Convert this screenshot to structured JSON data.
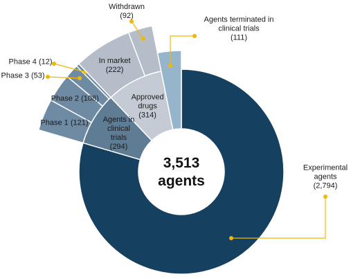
{
  "chart_data": {
    "type": "sunburst",
    "total": 3513,
    "total_label": "3,513",
    "total_caption": "agents",
    "nodes": [
      {
        "name": "Experimental agents",
        "value": 2794,
        "value_label": "(2,794)",
        "color": "#15405f"
      },
      {
        "name": "Agents in clinical trials",
        "value": 294,
        "value_label": "(294)",
        "color": "#5f7c95",
        "children": [
          {
            "name": "Phase 1",
            "value": 121,
            "value_label": "(121)",
            "color": "#6f8ba4"
          },
          {
            "name": "Phase 2",
            "value": 108,
            "value_label": "(108)",
            "color": "#6f8ba4"
          },
          {
            "name": "Phase 3",
            "value": 53,
            "value_label": "(53)",
            "color": "#6f8ba4"
          },
          {
            "name": "Phase 4",
            "value": 12,
            "value_label": "(12)",
            "color": "#6f8ba4"
          }
        ]
      },
      {
        "name": "Approved drugs",
        "value": 314,
        "value_label": "(314)",
        "color": "#c4cbd4",
        "children": [
          {
            "name": "In market",
            "value": 222,
            "value_label": "(222)",
            "color": "#b5bdc8"
          },
          {
            "name": "Withdrawn",
            "value": 92,
            "value_label": "(92)",
            "color": "#b5bdc8"
          }
        ]
      },
      {
        "name": "Agents terminated in clinical trials",
        "value": 111,
        "value_label": "(111)",
        "color": "#97b5ca"
      }
    ]
  }
}
